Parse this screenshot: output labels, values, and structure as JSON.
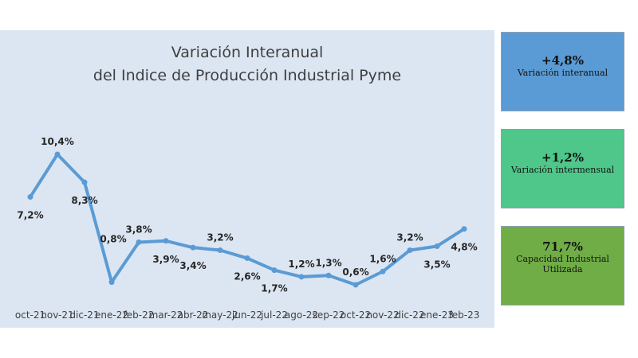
{
  "chart_data": {
    "type": "line",
    "title_lines": [
      "Variación Interanual",
      "del Indice de Producción Industrial Pyme"
    ],
    "categories": [
      "oct-21",
      "nov-21",
      "dic-21",
      "ene-22",
      "feb-22",
      "mar-22",
      "abr-22",
      "may-22",
      "jun-22",
      "jul-22",
      "ago-22",
      "sep-22",
      "oct-22",
      "nov-22",
      "dic-22",
      "ene-23",
      "feb-23"
    ],
    "values": [
      7.2,
      10.4,
      8.3,
      0.8,
      3.8,
      3.9,
      3.4,
      3.2,
      2.6,
      1.7,
      1.2,
      1.3,
      0.6,
      1.6,
      3.2,
      3.5,
      4.8
    ],
    "data_labels": [
      "7,2%",
      "10,4%",
      "8,3%",
      "0,8%",
      "3,8%",
      "3,9%",
      "3,4%",
      "3,2%",
      "2,6%",
      "1,7%",
      "1,2%",
      "1,3%",
      "0,6%",
      "1,6%",
      "3,2%",
      "3,5%",
      "4,8%"
    ],
    "line_color": "#5b9bd5",
    "grid": false,
    "legend": "none"
  },
  "cards": [
    {
      "value": "+4,8%",
      "label": "Variación interanual",
      "color": "#5b9bd5"
    },
    {
      "value": "+1,2%",
      "label": "Variación intermensual",
      "color": "#4fc78a"
    },
    {
      "value": "71,7%",
      "label": "Capacidad Industrial Utilizada",
      "color": "#70ad47"
    }
  ]
}
